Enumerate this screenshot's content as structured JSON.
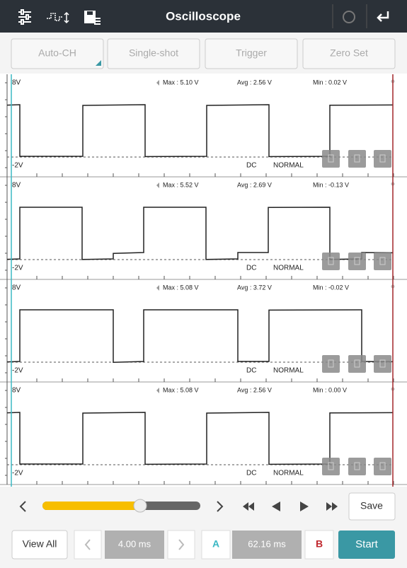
{
  "header": {
    "title": "Oscilloscope"
  },
  "toolbar": {
    "buttons": [
      "Auto-CH",
      "Single-shot",
      "Trigger",
      "Zero Set"
    ]
  },
  "panels": [
    {
      "top_label": "8V",
      "bottom_label": "-2V",
      "max": "Max : 5.10 V",
      "avg": "Avg : 2.56 V",
      "min": "Min : 0.02 V",
      "coupling": "DC",
      "mode": "NORMAL"
    },
    {
      "top_label": "8V",
      "bottom_label": "-2V",
      "max": "Max : 5.52 V",
      "avg": "Avg : 2.69 V",
      "min": "Min : -0.13 V",
      "coupling": "DC",
      "mode": "NORMAL"
    },
    {
      "top_label": "8V",
      "bottom_label": "-2V",
      "max": "Max : 5.08 V",
      "avg": "Avg : 3.72 V",
      "min": "Min : -0.02 V",
      "coupling": "DC",
      "mode": "NORMAL"
    },
    {
      "top_label": "8V",
      "bottom_label": "-2V",
      "max": "Max : 5.08 V",
      "avg": "Avg : 2.56 V",
      "min": "Min : 0.00 V",
      "coupling": "DC",
      "mode": "NORMAL"
    }
  ],
  "controls": {
    "save": "Save"
  },
  "footer": {
    "view_all": "View All",
    "time_div": "4.00 ms",
    "cursor_a": "A",
    "delta": "62.16 ms",
    "cursor_b": "B",
    "start": "Start"
  }
}
